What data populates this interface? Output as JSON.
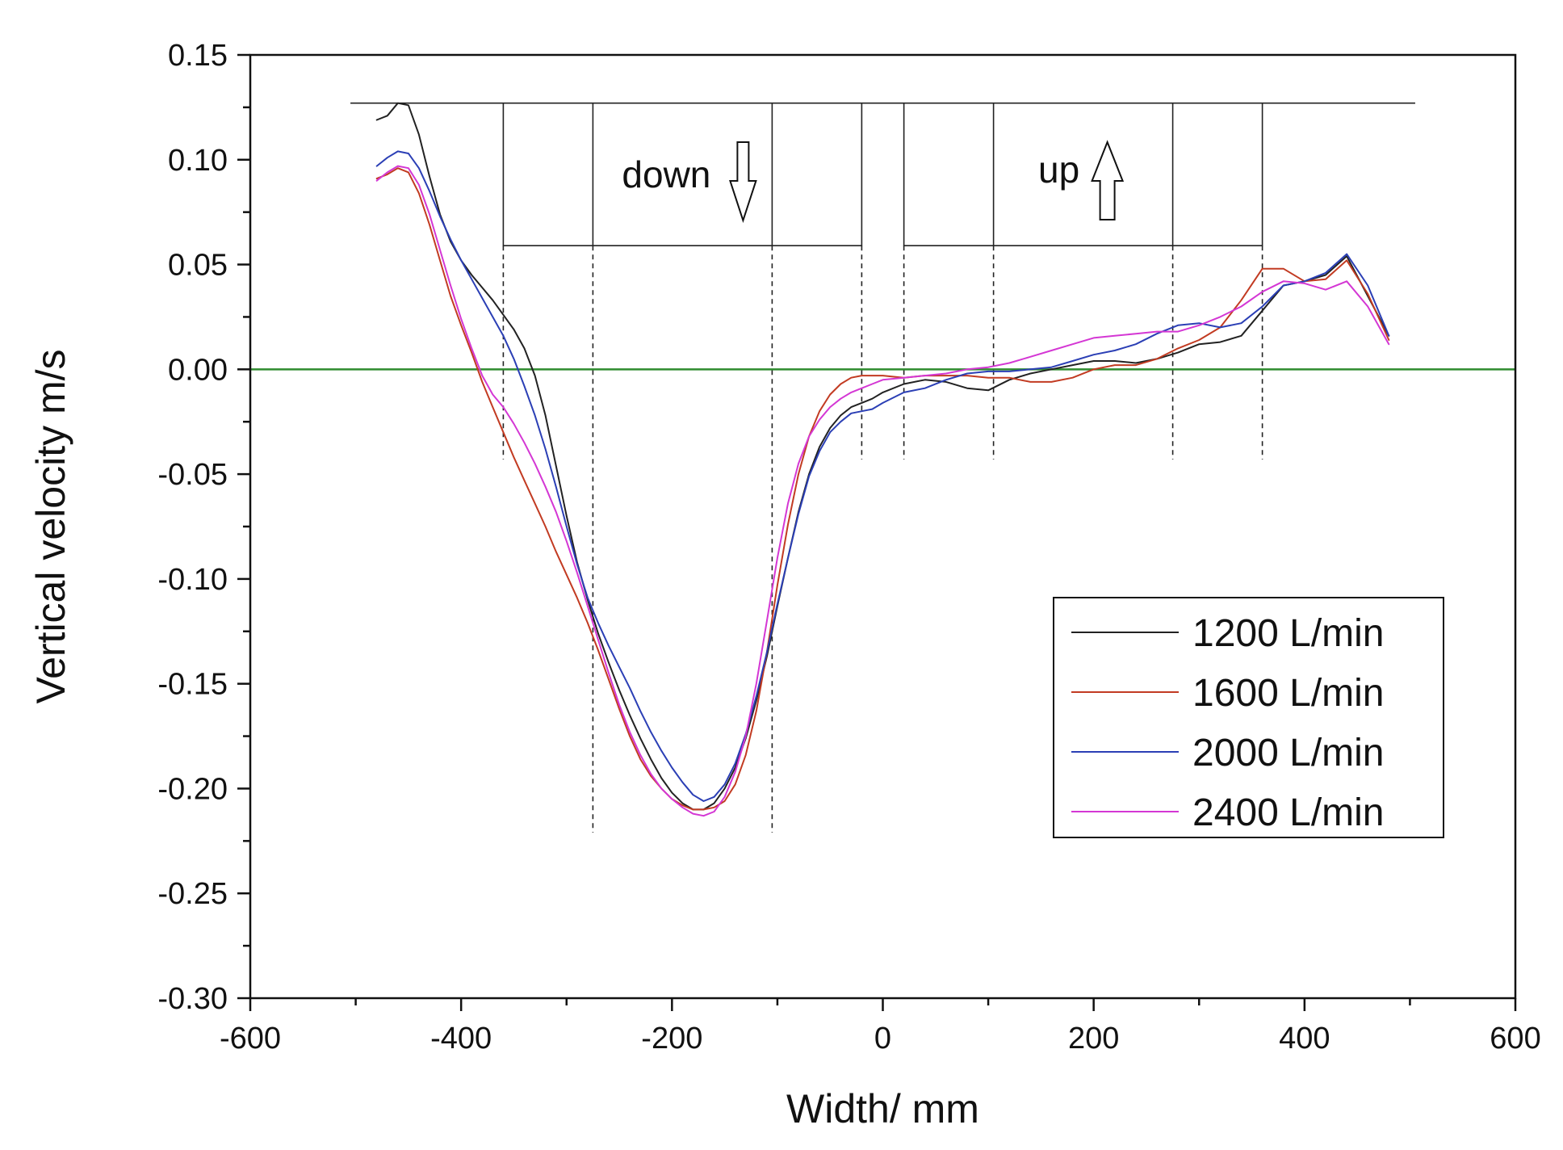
{
  "chart_data": {
    "type": "line",
    "title": "",
    "xlabel": "Width/ mm",
    "ylabel": "Vertical velocity m/s",
    "xlim": [
      -600,
      600
    ],
    "ylim": [
      -0.3,
      0.15
    ],
    "x_ticks": [
      -600,
      -400,
      -200,
      0,
      200,
      400,
      600
    ],
    "x_tick_labels": [
      "-600",
      "-400",
      "-200",
      "0",
      "200",
      "400",
      "600"
    ],
    "y_ticks": [
      -0.3,
      -0.25,
      -0.2,
      -0.15,
      -0.1,
      -0.05,
      0.0,
      0.05,
      0.1,
      0.15
    ],
    "y_tick_labels": [
      "-0.30",
      "-0.25",
      "-0.20",
      "-0.15",
      "-0.10",
      "-0.05",
      "0.00",
      "0.05",
      "0.10",
      "0.15"
    ],
    "grid": false,
    "legend_position": "lower-right",
    "reference_line": {
      "y": 0.0,
      "color": "#2e8b2e"
    },
    "series": [
      {
        "name": "1200 L/min",
        "color": "#222222",
        "x": [
          -480,
          -470,
          -460,
          -450,
          -440,
          -430,
          -420,
          -410,
          -400,
          -390,
          -380,
          -370,
          -360,
          -350,
          -340,
          -330,
          -320,
          -310,
          -300,
          -290,
          -280,
          -270,
          -260,
          -250,
          -240,
          -230,
          -220,
          -210,
          -200,
          -190,
          -180,
          -170,
          -160,
          -150,
          -140,
          -130,
          -120,
          -110,
          -100,
          -90,
          -80,
          -70,
          -60,
          -50,
          -40,
          -30,
          -20,
          -10,
          0,
          20,
          40,
          60,
          80,
          100,
          120,
          140,
          160,
          180,
          200,
          220,
          240,
          260,
          280,
          300,
          320,
          340,
          360,
          380,
          400,
          420,
          440,
          460,
          480
        ],
        "values": [
          0.119,
          0.121,
          0.127,
          0.126,
          0.112,
          0.092,
          0.074,
          0.061,
          0.052,
          0.045,
          0.039,
          0.033,
          0.026,
          0.019,
          0.01,
          -0.003,
          -0.022,
          -0.046,
          -0.07,
          -0.092,
          -0.11,
          -0.126,
          -0.14,
          -0.153,
          -0.165,
          -0.176,
          -0.186,
          -0.195,
          -0.202,
          -0.207,
          -0.21,
          -0.21,
          -0.207,
          -0.2,
          -0.19,
          -0.176,
          -0.158,
          -0.137,
          -0.113,
          -0.09,
          -0.068,
          -0.05,
          -0.037,
          -0.028,
          -0.022,
          -0.018,
          -0.016,
          -0.014,
          -0.011,
          -0.007,
          -0.005,
          -0.006,
          -0.009,
          -0.01,
          -0.005,
          -0.002,
          0.0,
          0.002,
          0.004,
          0.004,
          0.003,
          0.005,
          0.008,
          0.012,
          0.013,
          0.016,
          0.028,
          0.04,
          0.042,
          0.045,
          0.054,
          0.035,
          0.016
        ]
      },
      {
        "name": "1600 L/min",
        "color": "#c23b22",
        "x": [
          -480,
          -470,
          -460,
          -450,
          -440,
          -430,
          -420,
          -410,
          -400,
          -390,
          -380,
          -370,
          -360,
          -350,
          -340,
          -330,
          -320,
          -310,
          -300,
          -290,
          -280,
          -270,
          -260,
          -250,
          -240,
          -230,
          -220,
          -210,
          -200,
          -190,
          -180,
          -170,
          -160,
          -150,
          -140,
          -130,
          -120,
          -110,
          -100,
          -90,
          -80,
          -70,
          -60,
          -50,
          -40,
          -30,
          -20,
          -10,
          0,
          20,
          40,
          60,
          80,
          100,
          120,
          140,
          160,
          180,
          200,
          220,
          240,
          260,
          280,
          300,
          320,
          340,
          360,
          380,
          400,
          420,
          440,
          460,
          480
        ],
        "values": [
          0.091,
          0.093,
          0.096,
          0.094,
          0.084,
          0.069,
          0.052,
          0.035,
          0.021,
          0.008,
          -0.006,
          -0.018,
          -0.03,
          -0.042,
          -0.053,
          -0.064,
          -0.075,
          -0.087,
          -0.098,
          -0.109,
          -0.121,
          -0.134,
          -0.148,
          -0.162,
          -0.175,
          -0.186,
          -0.194,
          -0.2,
          -0.205,
          -0.208,
          -0.21,
          -0.21,
          -0.209,
          -0.206,
          -0.198,
          -0.184,
          -0.163,
          -0.135,
          -0.103,
          -0.074,
          -0.05,
          -0.032,
          -0.02,
          -0.012,
          -0.007,
          -0.004,
          -0.003,
          -0.003,
          -0.003,
          -0.004,
          -0.003,
          -0.003,
          -0.003,
          -0.004,
          -0.004,
          -0.006,
          -0.006,
          -0.004,
          0.0,
          0.002,
          0.002,
          0.005,
          0.01,
          0.014,
          0.02,
          0.033,
          0.048,
          0.048,
          0.042,
          0.043,
          0.052,
          0.036,
          0.014
        ]
      },
      {
        "name": "2000 L/min",
        "color": "#2b3fb5",
        "x": [
          -480,
          -470,
          -460,
          -450,
          -440,
          -430,
          -420,
          -410,
          -400,
          -390,
          -380,
          -370,
          -360,
          -350,
          -340,
          -330,
          -320,
          -310,
          -300,
          -290,
          -280,
          -270,
          -260,
          -250,
          -240,
          -230,
          -220,
          -210,
          -200,
          -190,
          -180,
          -170,
          -160,
          -150,
          -140,
          -130,
          -120,
          -110,
          -100,
          -90,
          -80,
          -70,
          -60,
          -50,
          -40,
          -30,
          -20,
          -10,
          0,
          20,
          40,
          60,
          80,
          100,
          120,
          140,
          160,
          180,
          200,
          220,
          240,
          260,
          280,
          300,
          320,
          340,
          360,
          380,
          400,
          420,
          440,
          460,
          480
        ],
        "values": [
          0.097,
          0.101,
          0.104,
          0.103,
          0.096,
          0.085,
          0.073,
          0.062,
          0.052,
          0.043,
          0.034,
          0.025,
          0.016,
          0.005,
          -0.008,
          -0.022,
          -0.038,
          -0.056,
          -0.075,
          -0.093,
          -0.109,
          -0.121,
          -0.132,
          -0.142,
          -0.152,
          -0.163,
          -0.173,
          -0.182,
          -0.19,
          -0.197,
          -0.203,
          -0.206,
          -0.204,
          -0.198,
          -0.188,
          -0.174,
          -0.156,
          -0.135,
          -0.112,
          -0.09,
          -0.069,
          -0.051,
          -0.039,
          -0.03,
          -0.025,
          -0.021,
          -0.02,
          -0.019,
          -0.016,
          -0.011,
          -0.009,
          -0.005,
          -0.002,
          -0.001,
          -0.001,
          0.0,
          0.001,
          0.004,
          0.007,
          0.009,
          0.012,
          0.017,
          0.021,
          0.022,
          0.02,
          0.022,
          0.03,
          0.04,
          0.042,
          0.046,
          0.055,
          0.04,
          0.016
        ]
      },
      {
        "name": "2400 L/min",
        "color": "#d437d4",
        "x": [
          -480,
          -470,
          -460,
          -450,
          -440,
          -430,
          -420,
          -410,
          -400,
          -390,
          -380,
          -370,
          -360,
          -350,
          -340,
          -330,
          -320,
          -310,
          -300,
          -290,
          -280,
          -270,
          -260,
          -250,
          -240,
          -230,
          -220,
          -210,
          -200,
          -190,
          -180,
          -170,
          -160,
          -150,
          -140,
          -130,
          -120,
          -110,
          -100,
          -90,
          -80,
          -70,
          -60,
          -50,
          -40,
          -30,
          -20,
          -10,
          0,
          20,
          40,
          60,
          80,
          100,
          120,
          140,
          160,
          180,
          200,
          220,
          240,
          260,
          280,
          300,
          320,
          340,
          360,
          380,
          400,
          420,
          440,
          460,
          480
        ],
        "values": [
          0.09,
          0.094,
          0.097,
          0.096,
          0.088,
          0.074,
          0.057,
          0.04,
          0.024,
          0.01,
          -0.003,
          -0.012,
          -0.018,
          -0.026,
          -0.035,
          -0.045,
          -0.056,
          -0.068,
          -0.082,
          -0.097,
          -0.113,
          -0.129,
          -0.145,
          -0.16,
          -0.173,
          -0.184,
          -0.193,
          -0.2,
          -0.205,
          -0.209,
          -0.212,
          -0.213,
          -0.211,
          -0.204,
          -0.192,
          -0.175,
          -0.15,
          -0.12,
          -0.09,
          -0.064,
          -0.045,
          -0.032,
          -0.024,
          -0.018,
          -0.014,
          -0.011,
          -0.009,
          -0.007,
          -0.005,
          -0.004,
          -0.003,
          -0.002,
          0.0,
          0.001,
          0.003,
          0.006,
          0.009,
          0.012,
          0.015,
          0.016,
          0.017,
          0.018,
          0.018,
          0.021,
          0.025,
          0.03,
          0.037,
          0.042,
          0.041,
          0.038,
          0.042,
          0.03,
          0.012
        ]
      }
    ],
    "annotations": [
      {
        "text": "down",
        "direction": "down",
        "zone_x": [
          -360,
          -20
        ],
        "inner_dividers_x": [
          -275,
          -105
        ]
      },
      {
        "text": "up",
        "direction": "up",
        "zone_x": [
          20,
          360
        ],
        "inner_dividers_x": [
          105,
          275
        ]
      }
    ],
    "annotation_top_line_x": [
      -505,
      505
    ],
    "annotation_y_range": [
      0.059,
      0.127
    ],
    "dashed_guides_x": [
      -360,
      -275,
      -105,
      -20,
      20,
      105,
      275,
      360
    ],
    "dashed_guides_bottom_y": {
      "-360": -0.043,
      "-275": -0.221,
      "-105": -0.221,
      "-20": -0.043,
      "20": -0.043,
      "105": -0.043,
      "275": -0.043,
      "360": -0.043
    }
  }
}
